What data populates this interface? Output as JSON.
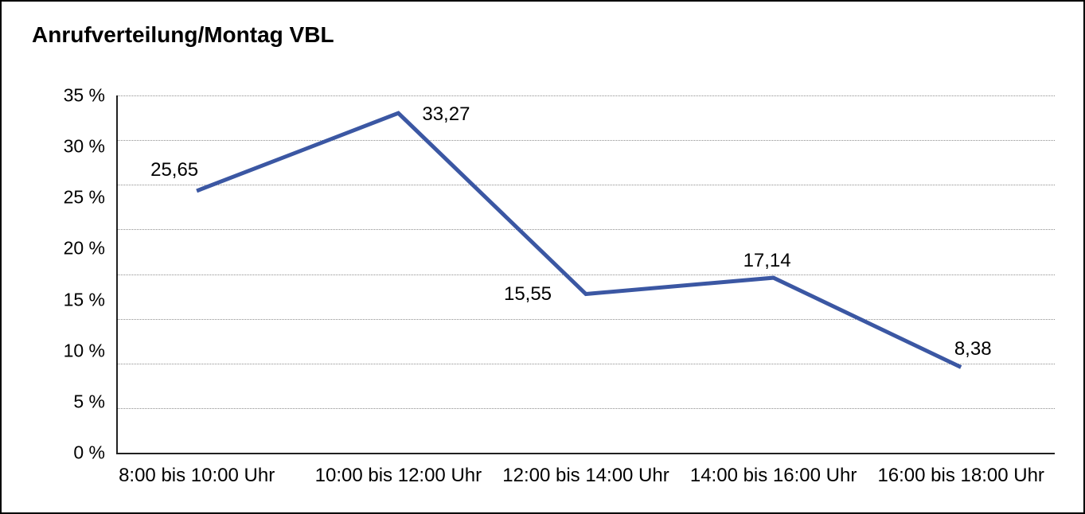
{
  "chart_data": {
    "type": "line",
    "title": "Anrufverteilung/Montag VBL",
    "categories": [
      "8:00 bis 10:00 Uhr",
      "10:00 bis 12:00 Uhr",
      "12:00 bis 14:00 Uhr",
      "14:00 bis 16:00 Uhr",
      "16:00 bis 18:00 Uhr"
    ],
    "values": [
      25.65,
      33.27,
      15.55,
      17.14,
      8.38
    ],
    "point_labels": [
      "25,65",
      "33,27",
      "15,55",
      "17,14",
      "8,38"
    ],
    "y_tick_values": [
      35,
      30,
      25,
      20,
      15,
      10,
      5,
      0
    ],
    "y_tick_labels": [
      "35 %",
      "30 %",
      "25 %",
      "20 %",
      "15 %",
      "10 %",
      "5 %",
      "0 %"
    ],
    "ylim": [
      0,
      35
    ],
    "xlabel": "",
    "ylabel": "",
    "legend": "none",
    "grid": "horizontal dotted, 8 equal divisions",
    "grid_divisions": 8,
    "line_color": "#3B57A3",
    "grid_color": "#8f8f8f",
    "axis_color": "#212121",
    "text_color": "#000000"
  }
}
